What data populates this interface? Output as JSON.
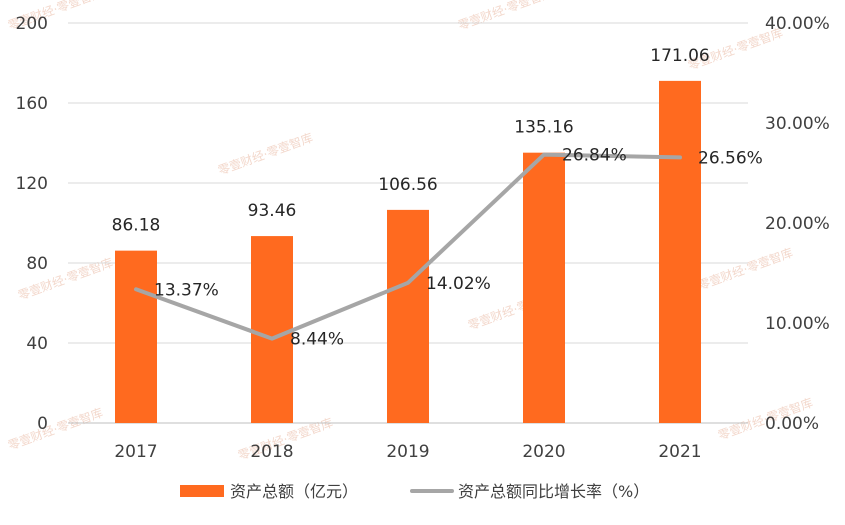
{
  "chart_data": {
    "type": "bar",
    "categories": [
      "2017",
      "2018",
      "2019",
      "2020",
      "2021"
    ],
    "series": [
      {
        "name": "资产总额（亿元）",
        "type": "bar",
        "axis": "left",
        "color": "#FF6A1F",
        "values": [
          86.18,
          93.46,
          106.56,
          135.16,
          171.06
        ],
        "labels": [
          "86.18",
          "93.46",
          "106.56",
          "135.16",
          "171.06"
        ]
      },
      {
        "name": "资产总额同比增长率（%）",
        "type": "line",
        "axis": "right",
        "color": "#A6A6A6",
        "values": [
          13.37,
          8.44,
          14.02,
          26.84,
          26.56
        ],
        "labels": [
          "13.37%",
          "8.44%",
          "14.02%",
          "26.84%",
          "26.56%"
        ]
      }
    ],
    "y_left": {
      "ylim": [
        0,
        200
      ],
      "ticks": [
        "0",
        "40",
        "80",
        "120",
        "160",
        "200"
      ]
    },
    "y_right": {
      "ylim": [
        0,
        40
      ],
      "ticks": [
        "0.00%",
        "10.00%",
        "20.00%",
        "30.00%",
        "40.00%"
      ]
    },
    "grid": true,
    "legend_position": "bottom"
  },
  "watermark": "零壹财经·零壹智库"
}
